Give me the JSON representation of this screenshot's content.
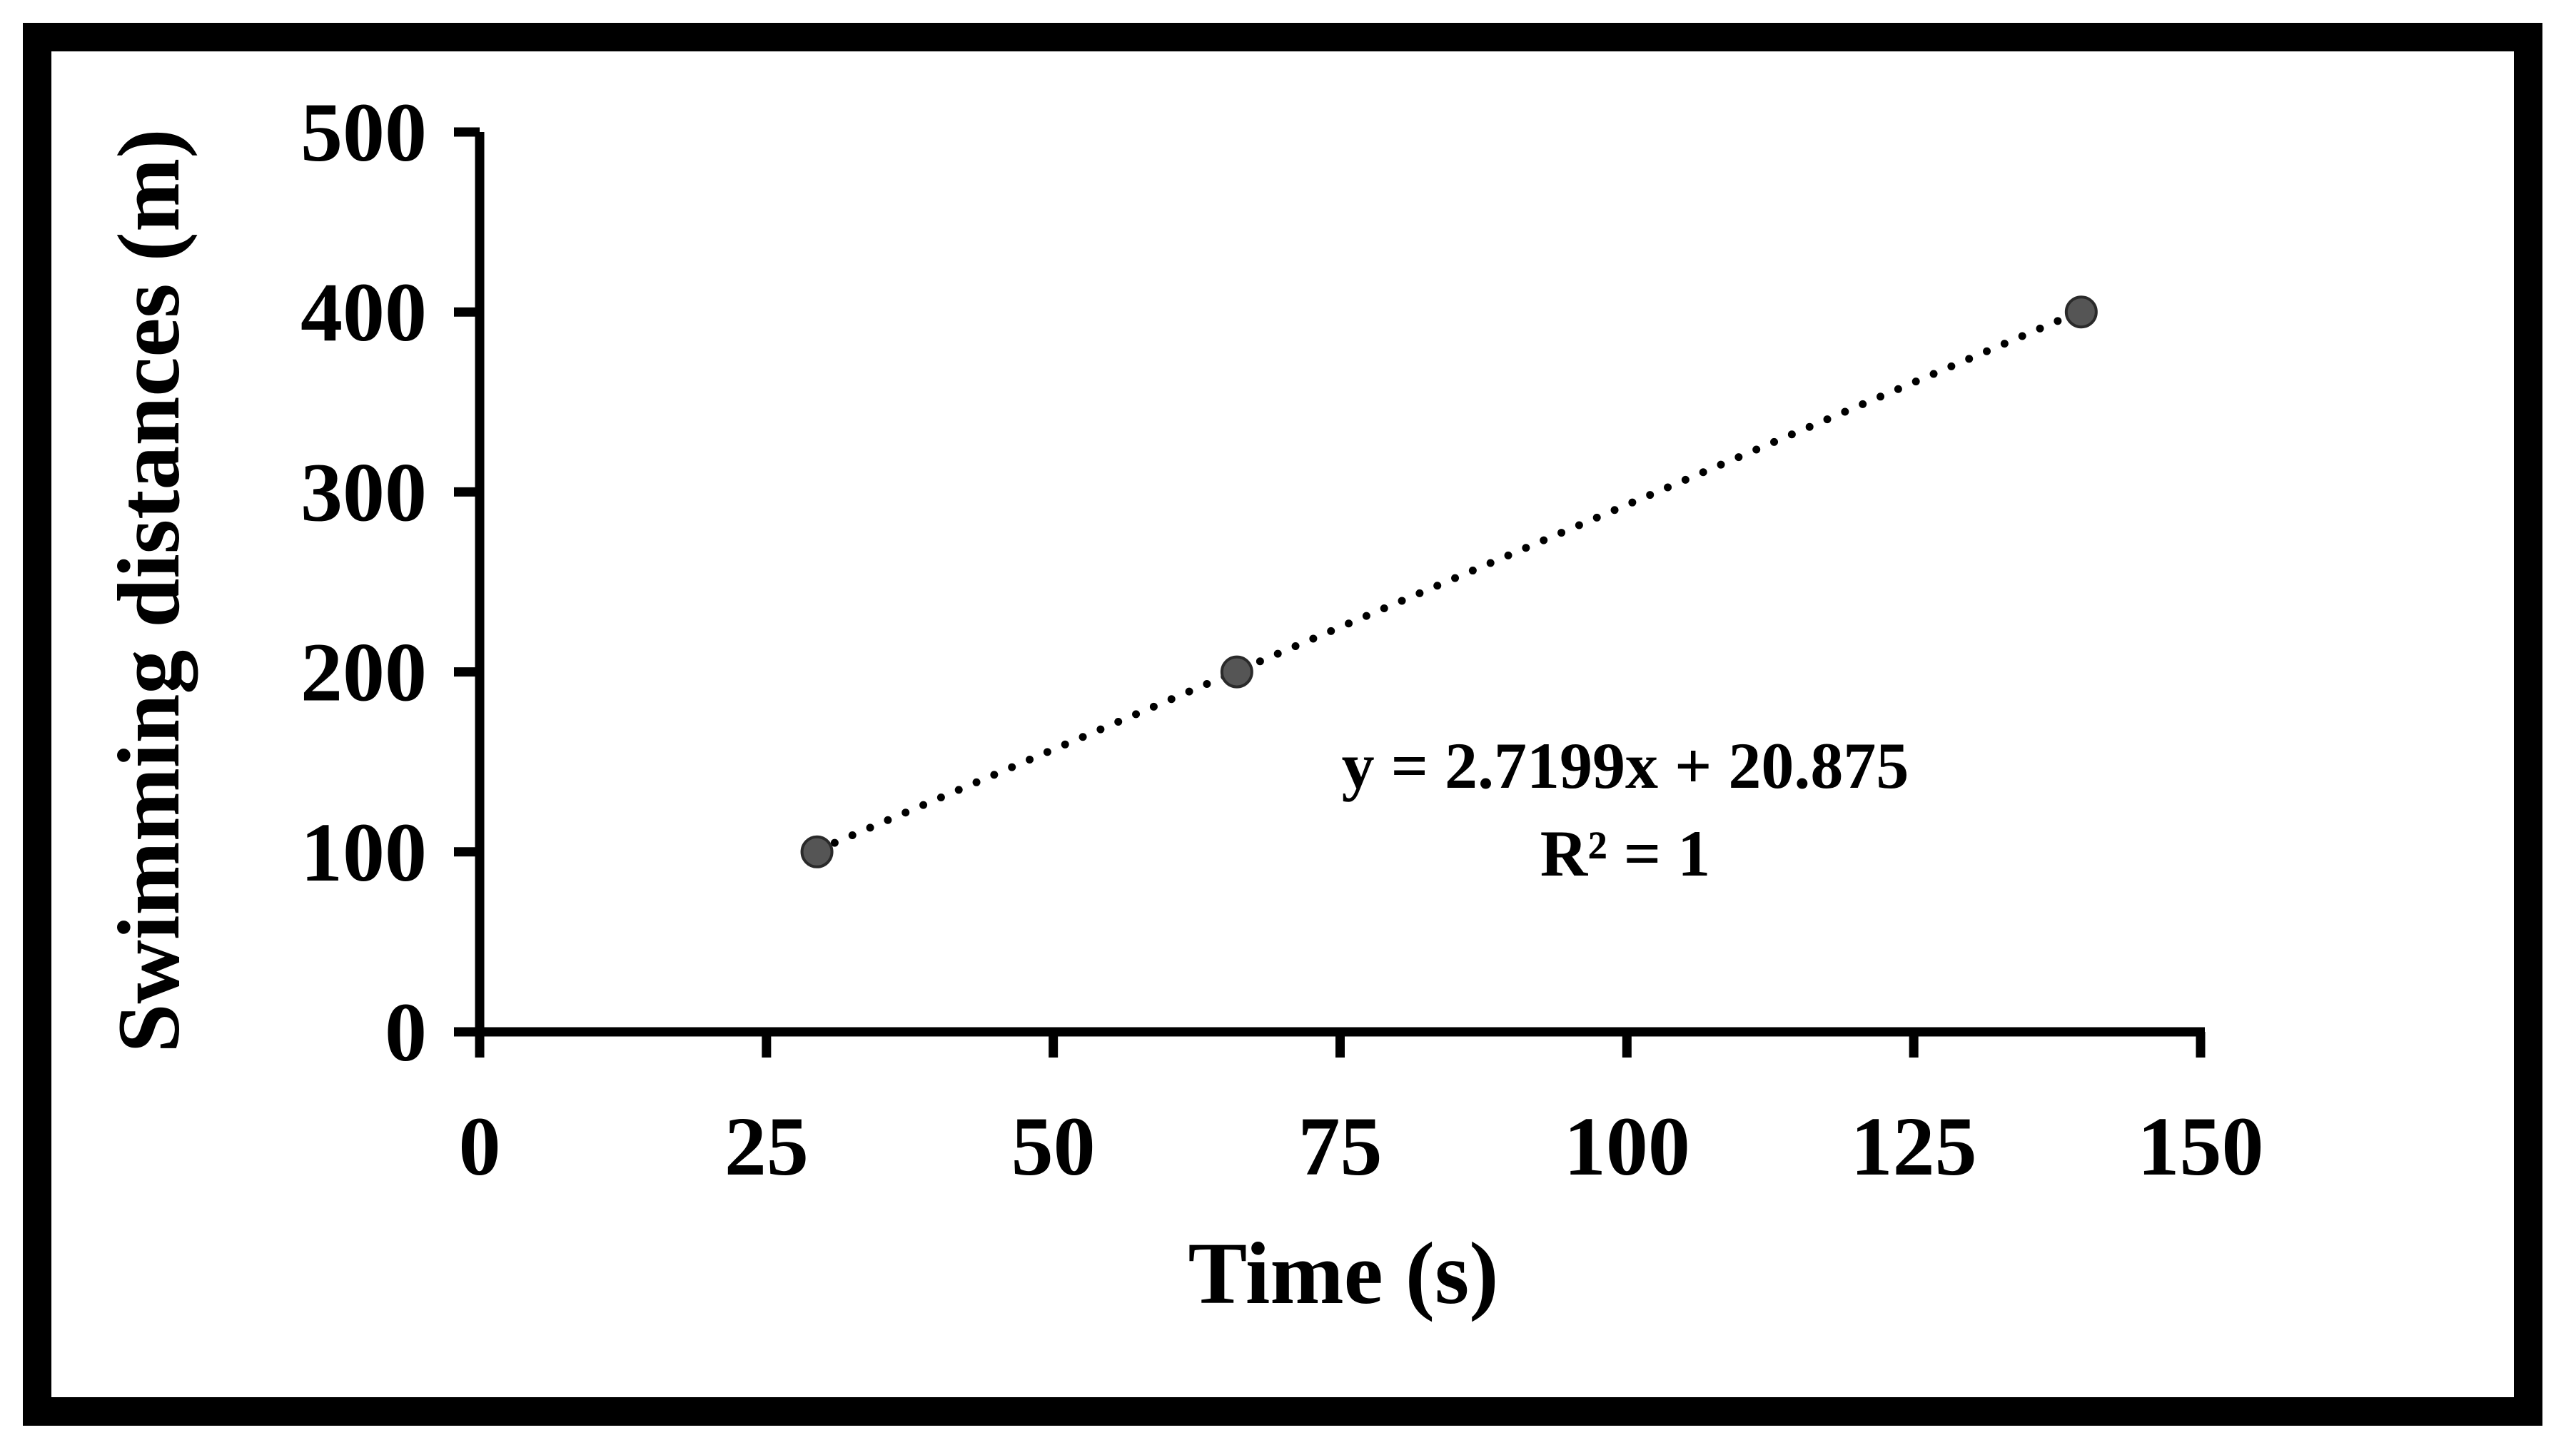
{
  "chart_data": {
    "type": "scatter",
    "title": "",
    "xlabel": "Time (s)",
    "ylabel": "Swimming distances (m)",
    "xlim": [
      0,
      150
    ],
    "ylim": [
      0,
      500
    ],
    "x_ticks": [
      0,
      25,
      50,
      75,
      100,
      125,
      150
    ],
    "y_ticks": [
      0,
      100,
      200,
      300,
      400,
      500
    ],
    "grid": false,
    "legend": "none",
    "series": [
      {
        "x": [
          29.4,
          66.0,
          139.6
        ],
        "y": [
          100,
          200,
          400
        ],
        "marker_color": "#555555"
      }
    ],
    "trendline": {
      "type": "linear",
      "style": "dotted",
      "slope": 2.7199,
      "intercept": 20.875,
      "equation": "y = 2.7199x + 20.875",
      "r_squared": "R² = 1"
    }
  }
}
